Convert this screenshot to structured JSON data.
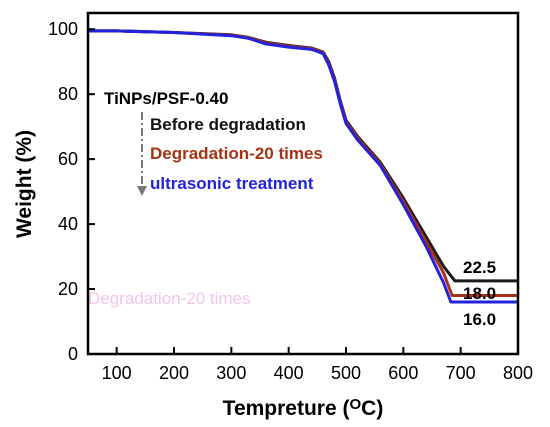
{
  "chart_data": {
    "type": "line",
    "title": "",
    "xlabel": "Tempreture (",
    "xlabel_unit": "O",
    "xlabel_unit2": "C",
    "xlabel_close": ")",
    "ylabel": "Weight (%)",
    "xlim": [
      50,
      800
    ],
    "ylim": [
      0,
      105
    ],
    "xticks": [
      100,
      200,
      300,
      400,
      500,
      600,
      700,
      800
    ],
    "yticks": [
      0,
      20,
      40,
      60,
      80,
      100
    ],
    "xtick_labels": [
      "100",
      "200",
      "300",
      "400",
      "500",
      "600",
      "700",
      "800"
    ],
    "ytick_labels": [
      "0",
      "20",
      "40",
      "60",
      "80",
      "100"
    ],
    "sample_label": "TiNPs/PSF-0.40",
    "watermark_text": "Degradation-20 times",
    "series": [
      {
        "name": "Before degradation",
        "color": "#1a1a1a",
        "points": [
          [
            50,
            99.5
          ],
          [
            100,
            99.5
          ],
          [
            200,
            99.0
          ],
          [
            300,
            98.3
          ],
          [
            330,
            97.5
          ],
          [
            360,
            96.0
          ],
          [
            400,
            95.0
          ],
          [
            440,
            94.2
          ],
          [
            460,
            93.0
          ],
          [
            470,
            90.0
          ],
          [
            480,
            85.0
          ],
          [
            490,
            78.0
          ],
          [
            500,
            72.0
          ],
          [
            520,
            67.0
          ],
          [
            560,
            59.0
          ],
          [
            600,
            48.0
          ],
          [
            640,
            36.0
          ],
          [
            670,
            27.0
          ],
          [
            690,
            22.5
          ],
          [
            800,
            22.5
          ]
        ],
        "end_label": "22.5"
      },
      {
        "name": "Degradation-20 times",
        "color": "#a83214",
        "points": [
          [
            50,
            99.5
          ],
          [
            100,
            99.5
          ],
          [
            200,
            99.0
          ],
          [
            300,
            98.2
          ],
          [
            330,
            97.4
          ],
          [
            360,
            95.8
          ],
          [
            400,
            94.8
          ],
          [
            440,
            94.0
          ],
          [
            460,
            92.8
          ],
          [
            470,
            89.5
          ],
          [
            480,
            84.5
          ],
          [
            490,
            77.5
          ],
          [
            500,
            71.5
          ],
          [
            520,
            66.5
          ],
          [
            560,
            58.5
          ],
          [
            600,
            47.0
          ],
          [
            640,
            34.5
          ],
          [
            670,
            25.0
          ],
          [
            685,
            18.0
          ],
          [
            800,
            18.0
          ]
        ],
        "end_label": "18.0"
      },
      {
        "name": "ultrasonic treatment",
        "color": "#2222dd",
        "points": [
          [
            50,
            99.5
          ],
          [
            100,
            99.5
          ],
          [
            200,
            99.0
          ],
          [
            300,
            98.0
          ],
          [
            330,
            97.2
          ],
          [
            360,
            95.5
          ],
          [
            400,
            94.5
          ],
          [
            440,
            93.8
          ],
          [
            460,
            92.5
          ],
          [
            470,
            89.0
          ],
          [
            480,
            84.0
          ],
          [
            490,
            77.0
          ],
          [
            500,
            71.0
          ],
          [
            520,
            66.0
          ],
          [
            560,
            58.0
          ],
          [
            600,
            46.0
          ],
          [
            640,
            33.0
          ],
          [
            670,
            22.0
          ],
          [
            683,
            16.0
          ],
          [
            800,
            16.0
          ]
        ],
        "end_label": "16.0"
      }
    ]
  }
}
